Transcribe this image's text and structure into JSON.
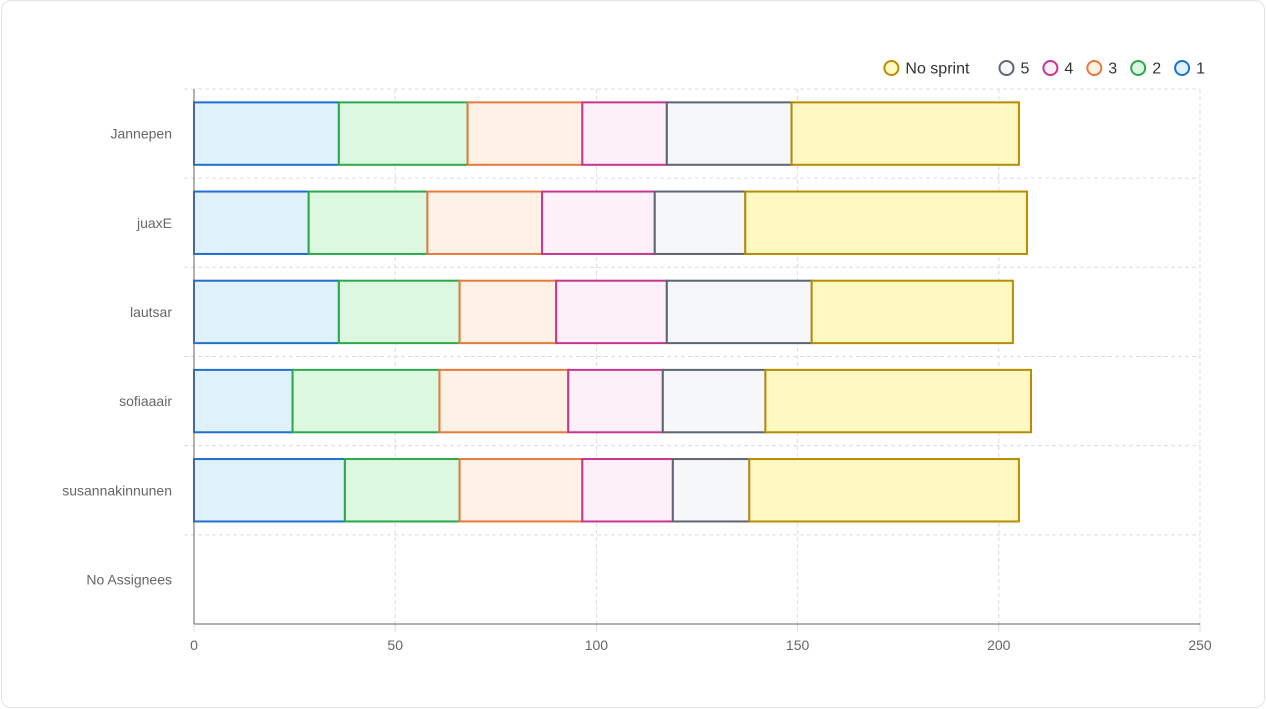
{
  "chart_data": {
    "type": "bar",
    "orientation": "horizontal",
    "stacked": true,
    "categories": [
      "Jannepen",
      "juaxE",
      "lautsar",
      "sofiaaair",
      "susannakinnunen",
      "No Assignees"
    ],
    "series": [
      {
        "name": "1",
        "border": "#1f6fd1",
        "fill": "#dff2fc",
        "values": [
          36,
          28.5,
          36,
          24.5,
          37.5,
          0
        ]
      },
      {
        "name": "2",
        "border": "#2ea84a",
        "fill": "#dcf8e1",
        "values": [
          32,
          29.5,
          30,
          36.5,
          28.5,
          0
        ]
      },
      {
        "name": "3",
        "border": "#e6793b",
        "fill": "#fef1e6",
        "values": [
          28.5,
          28.5,
          24,
          32,
          30.5,
          0
        ]
      },
      {
        "name": "4",
        "border": "#c7358f",
        "fill": "#fdf0f8",
        "values": [
          21,
          28,
          27.5,
          23.5,
          22.5,
          0
        ]
      },
      {
        "name": "5",
        "border": "#5e6572",
        "fill": "#f6f7f8",
        "values": [
          31,
          22.5,
          36,
          25.5,
          19,
          0
        ]
      },
      {
        "name": "No sprint",
        "border": "#b88c00",
        "fill": "#fef8c3",
        "values": [
          56.5,
          70,
          50,
          66,
          67,
          0
        ]
      }
    ],
    "xlim": [
      0,
      250
    ],
    "xticks": [
      "0",
      "50",
      "100",
      "150",
      "200",
      "250"
    ],
    "grid": true,
    "legend_position": "top-right",
    "legend_order": [
      "No sprint",
      "5",
      "4",
      "3",
      "2",
      "1"
    ]
  }
}
